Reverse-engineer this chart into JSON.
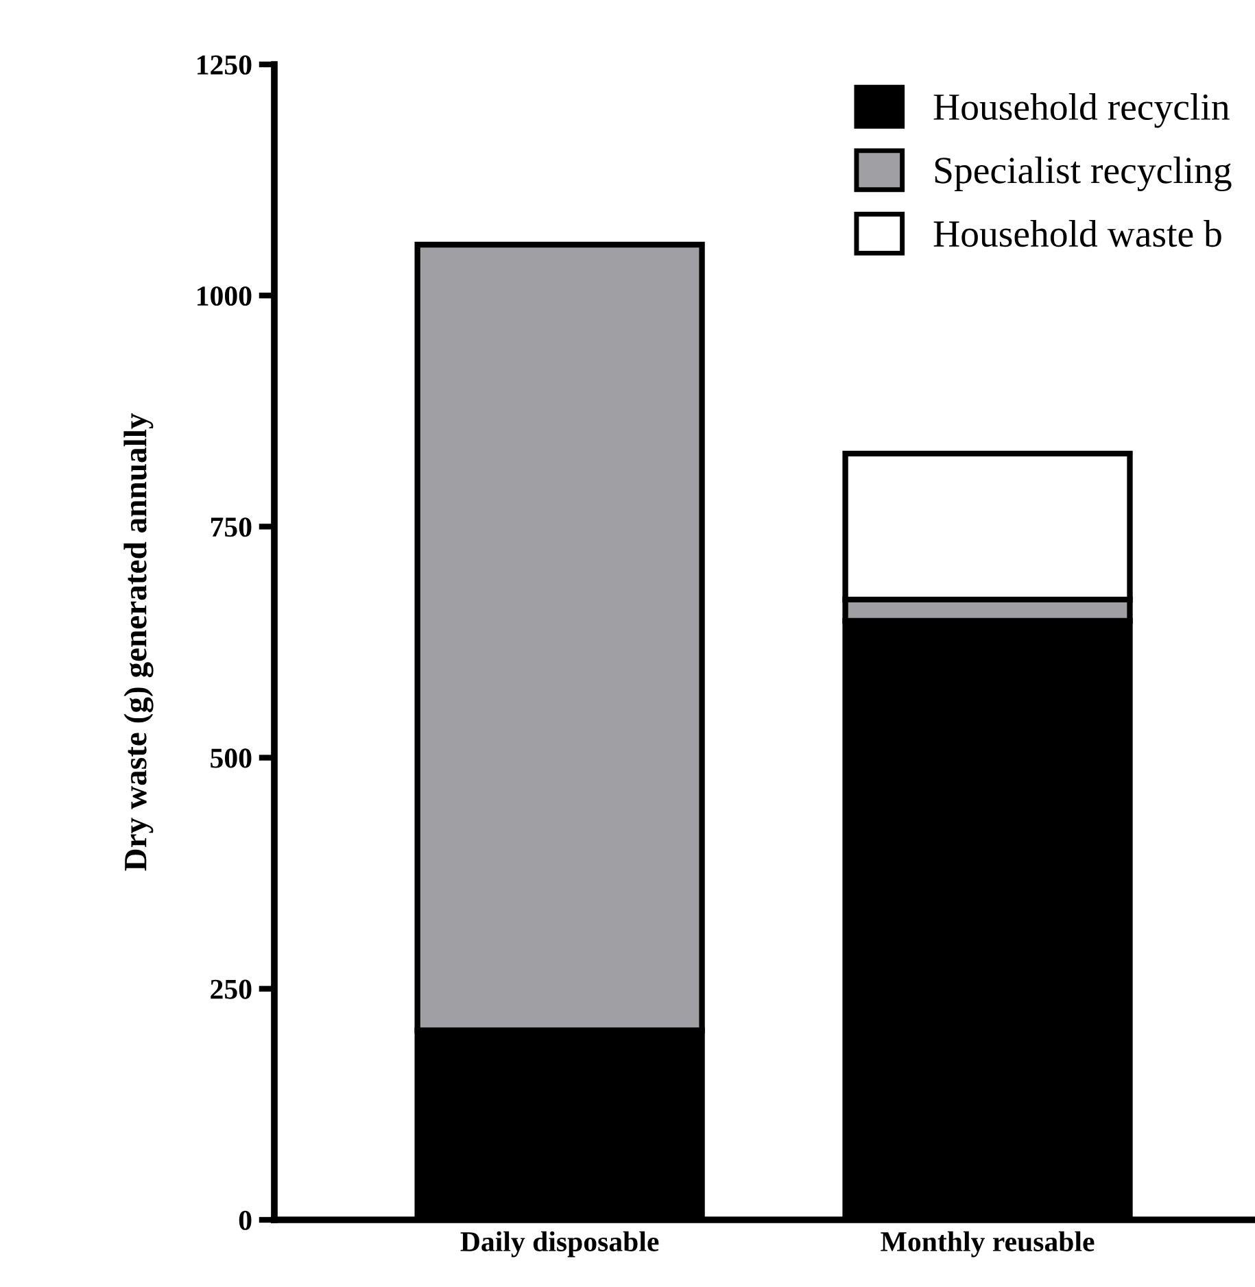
{
  "chart_data": {
    "type": "bar",
    "stacked": true,
    "ylabel": "Dry waste (g) generated annually",
    "categories": [
      "Daily disposable",
      "Monthly reusable"
    ],
    "series": [
      {
        "name": "Household recyclin",
        "color": "#000000",
        "values": [
          205,
          648
        ]
      },
      {
        "name": "Specialist recycling",
        "color": "#a09fa4",
        "values": [
          850,
          23
        ]
      },
      {
        "name": "Household waste b",
        "color": "#ffffff",
        "values": [
          null,
          158
        ]
      }
    ],
    "ylim": [
      0,
      1250
    ],
    "yticks": [
      0,
      250,
      500,
      750,
      1000,
      1250
    ],
    "grid": false,
    "legend": "top right"
  }
}
